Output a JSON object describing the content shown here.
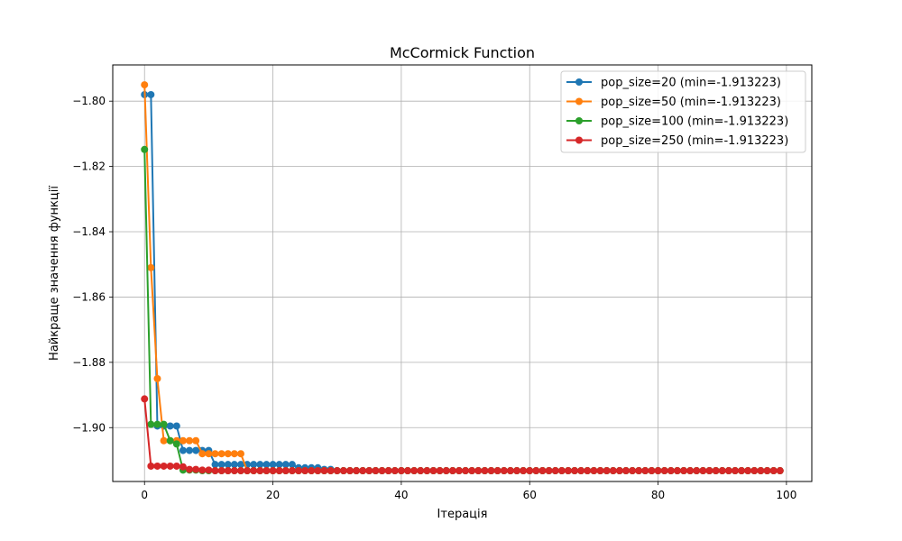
{
  "chart_data": {
    "type": "line",
    "title": "McCormick Function",
    "xlabel": "Ітерація",
    "ylabel": "Найкраще значення функції",
    "xlim": [
      -4.95,
      103.95
    ],
    "ylim": [
      -1.9165,
      -1.7889
    ],
    "xticks": [
      0,
      20,
      40,
      60,
      80,
      100
    ],
    "yticks": [
      -1.9,
      -1.88,
      -1.86,
      -1.84,
      -1.82,
      -1.8
    ],
    "xtick_labels": [
      "0",
      "20",
      "40",
      "60",
      "80",
      "100"
    ],
    "ytick_labels": [
      "−1.90",
      "−1.88",
      "−1.86",
      "−1.84",
      "−1.82",
      "−1.80"
    ],
    "grid": true,
    "legend_position": "top-right",
    "x_count": 100,
    "series": [
      {
        "name": "pop_size=20 (min=-1.913223)",
        "color": "#1f77b4",
        "values": [
          -1.798,
          -1.798,
          -1.8995,
          -1.8995,
          -1.8995,
          -1.8995,
          -1.907,
          -1.907,
          -1.907,
          -1.907,
          -1.907,
          -1.9113,
          -1.9113,
          -1.9113,
          -1.9113,
          -1.9113,
          -1.9113,
          -1.9113,
          -1.9113,
          -1.9113,
          -1.9113,
          -1.9113,
          -1.9113,
          -1.9113,
          -1.9123,
          -1.9123,
          -1.9123,
          -1.9123,
          -1.9128,
          -1.9128,
          -1.9132,
          -1.9132,
          -1.9132,
          -1.9132,
          -1.9132,
          -1.9132,
          -1.9132,
          -1.9132,
          -1.9132,
          -1.9132,
          -1.9132,
          -1.9132,
          -1.9132,
          -1.9132,
          -1.9132,
          -1.9132,
          -1.9132,
          -1.9132,
          -1.9132,
          -1.9132,
          -1.9132,
          -1.9132,
          -1.9132,
          -1.9132,
          -1.9132,
          -1.9132,
          -1.9132,
          -1.9132,
          -1.9132,
          -1.9132,
          -1.9132,
          -1.9132,
          -1.9132,
          -1.9132,
          -1.9132,
          -1.9132,
          -1.9132,
          -1.9132,
          -1.9132,
          -1.9132,
          -1.9132,
          -1.9132,
          -1.9132,
          -1.9132,
          -1.9132,
          -1.9132,
          -1.9132,
          -1.9132,
          -1.9132,
          -1.9132,
          -1.9132,
          -1.9132,
          -1.9132,
          -1.9132,
          -1.9132,
          -1.9132,
          -1.9132,
          -1.9132,
          -1.9132,
          -1.9132,
          -1.9132,
          -1.9132,
          -1.9132,
          -1.9132,
          -1.9132,
          -1.9132,
          -1.9132,
          -1.9132,
          -1.9132,
          -1.9132
        ]
      },
      {
        "name": "pop_size=50 (min=-1.913223)",
        "color": "#ff7f0e",
        "values": [
          -1.795,
          -1.851,
          -1.885,
          -1.904,
          -1.904,
          -1.904,
          -1.904,
          -1.904,
          -1.904,
          -1.908,
          -1.908,
          -1.908,
          -1.908,
          -1.908,
          -1.908,
          -1.908,
          -1.9132,
          -1.9132,
          -1.9132,
          -1.9132,
          -1.9132,
          -1.9132,
          -1.9132,
          -1.9132,
          -1.9132,
          -1.9132,
          -1.9132,
          -1.9132,
          -1.9132,
          -1.9132,
          -1.9132,
          -1.9132,
          -1.9132,
          -1.9132,
          -1.9132,
          -1.9132,
          -1.9132,
          -1.9132,
          -1.9132,
          -1.9132,
          -1.9132,
          -1.9132,
          -1.9132,
          -1.9132,
          -1.9132,
          -1.9132,
          -1.9132,
          -1.9132,
          -1.9132,
          -1.9132,
          -1.9132,
          -1.9132,
          -1.9132,
          -1.9132,
          -1.9132,
          -1.9132,
          -1.9132,
          -1.9132,
          -1.9132,
          -1.9132,
          -1.9132,
          -1.9132,
          -1.9132,
          -1.9132,
          -1.9132,
          -1.9132,
          -1.9132,
          -1.9132,
          -1.9132,
          -1.9132,
          -1.9132,
          -1.9132,
          -1.9132,
          -1.9132,
          -1.9132,
          -1.9132,
          -1.9132,
          -1.9132,
          -1.9132,
          -1.9132,
          -1.9132,
          -1.9132,
          -1.9132,
          -1.9132,
          -1.9132,
          -1.9132,
          -1.9132,
          -1.9132,
          -1.9132,
          -1.9132,
          -1.9132,
          -1.9132,
          -1.9132,
          -1.9132,
          -1.9132,
          -1.9132,
          -1.9132,
          -1.9132,
          -1.9132,
          -1.9132
        ]
      },
      {
        "name": "pop_size=100 (min=-1.913223)",
        "color": "#2ca02c",
        "values": [
          -1.8148,
          -1.899,
          -1.899,
          -1.899,
          -1.904,
          -1.905,
          -1.913,
          -1.913,
          -1.913,
          -1.9132,
          -1.9132,
          -1.9132,
          -1.9132,
          -1.9132,
          -1.9132,
          -1.9132,
          -1.9132,
          -1.9132,
          -1.9132,
          -1.9132,
          -1.9132,
          -1.9132,
          -1.9132,
          -1.9132,
          -1.9132,
          -1.9132,
          -1.9132,
          -1.9132,
          -1.9132,
          -1.9132,
          -1.9132,
          -1.9132,
          -1.9132,
          -1.9132,
          -1.9132,
          -1.9132,
          -1.9132,
          -1.9132,
          -1.9132,
          -1.9132,
          -1.9132,
          -1.9132,
          -1.9132,
          -1.9132,
          -1.9132,
          -1.9132,
          -1.9132,
          -1.9132,
          -1.9132,
          -1.9132,
          -1.9132,
          -1.9132,
          -1.9132,
          -1.9132,
          -1.9132,
          -1.9132,
          -1.9132,
          -1.9132,
          -1.9132,
          -1.9132,
          -1.9132,
          -1.9132,
          -1.9132,
          -1.9132,
          -1.9132,
          -1.9132,
          -1.9132,
          -1.9132,
          -1.9132,
          -1.9132,
          -1.9132,
          -1.9132,
          -1.9132,
          -1.9132,
          -1.9132,
          -1.9132,
          -1.9132,
          -1.9132,
          -1.9132,
          -1.9132,
          -1.9132,
          -1.9132,
          -1.9132,
          -1.9132,
          -1.9132,
          -1.9132,
          -1.9132,
          -1.9132,
          -1.9132,
          -1.9132,
          -1.9132,
          -1.9132,
          -1.9132,
          -1.9132,
          -1.9132,
          -1.9132,
          -1.9132,
          -1.9132,
          -1.9132,
          -1.9132
        ]
      },
      {
        "name": "pop_size=250 (min=-1.913223)",
        "color": "#d62728",
        "values": [
          -1.8912,
          -1.9118,
          -1.9118,
          -1.9118,
          -1.9118,
          -1.9118,
          -1.912,
          -1.9128,
          -1.9128,
          -1.913,
          -1.913,
          -1.9132,
          -1.9132,
          -1.9132,
          -1.9132,
          -1.9132,
          -1.9132,
          -1.9132,
          -1.9132,
          -1.9132,
          -1.9132,
          -1.9132,
          -1.9132,
          -1.9132,
          -1.9132,
          -1.9132,
          -1.9132,
          -1.9132,
          -1.9132,
          -1.9132,
          -1.9132,
          -1.9132,
          -1.9132,
          -1.9132,
          -1.9132,
          -1.9132,
          -1.9132,
          -1.9132,
          -1.9132,
          -1.9132,
          -1.9132,
          -1.9132,
          -1.9132,
          -1.9132,
          -1.9132,
          -1.9132,
          -1.9132,
          -1.9132,
          -1.9132,
          -1.9132,
          -1.9132,
          -1.9132,
          -1.9132,
          -1.9132,
          -1.9132,
          -1.9132,
          -1.9132,
          -1.9132,
          -1.9132,
          -1.9132,
          -1.9132,
          -1.9132,
          -1.9132,
          -1.9132,
          -1.9132,
          -1.9132,
          -1.9132,
          -1.9132,
          -1.9132,
          -1.9132,
          -1.9132,
          -1.9132,
          -1.9132,
          -1.9132,
          -1.9132,
          -1.9132,
          -1.9132,
          -1.9132,
          -1.9132,
          -1.9132,
          -1.9132,
          -1.9132,
          -1.9132,
          -1.9132,
          -1.9132,
          -1.9132,
          -1.9132,
          -1.9132,
          -1.9132,
          -1.9132,
          -1.9132,
          -1.9132,
          -1.9132,
          -1.9132,
          -1.9132,
          -1.9132,
          -1.9132,
          -1.9132,
          -1.9132,
          -1.9132
        ]
      }
    ]
  }
}
